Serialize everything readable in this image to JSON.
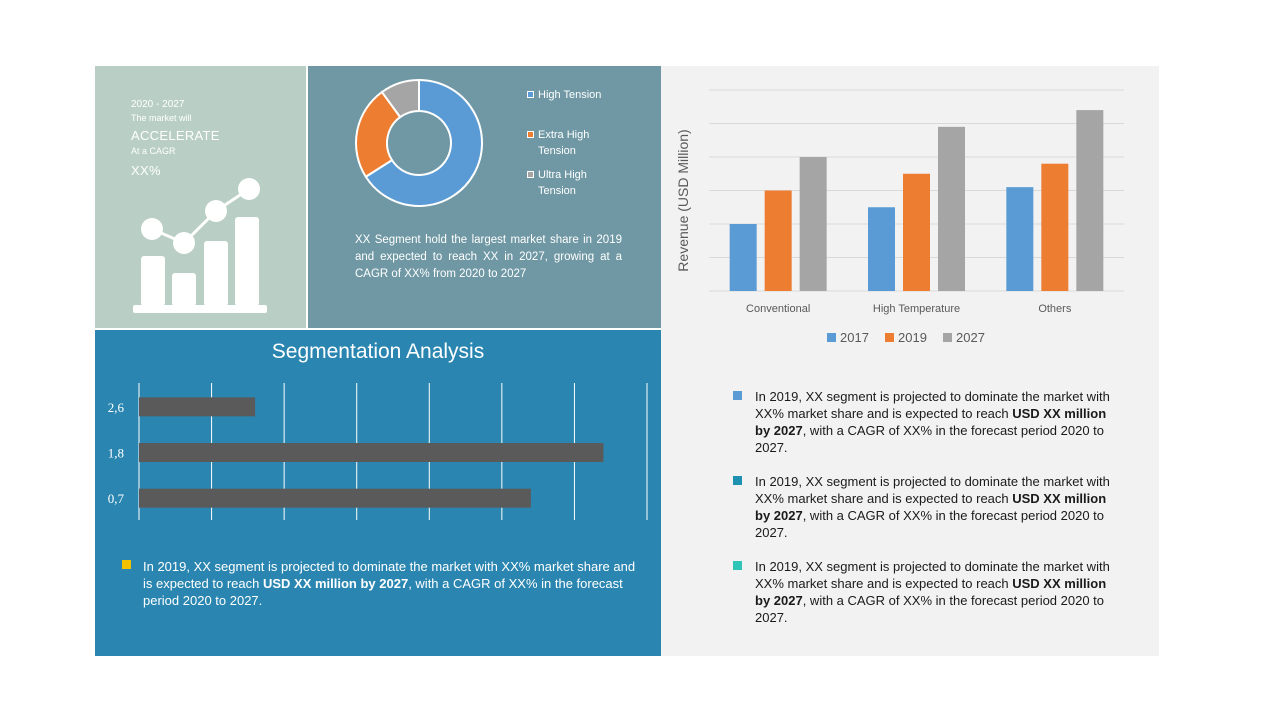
{
  "accelerate": {
    "years": "2020 - 2027",
    "line1": "The market will",
    "headline": "ACCELERATE",
    "line3": "At a CAGR",
    "cagr": "XX%"
  },
  "donut": {
    "legend": [
      "High Tension",
      "Extra High Tension",
      "Ultra High Tension"
    ],
    "colors": [
      "#5b9bd5",
      "#ed7d31",
      "#a5a5a5"
    ],
    "shares": [
      0.66,
      0.24,
      0.1
    ],
    "description": "XX Segment hold the largest market share in 2019 and expected to reach XX in 2027, growing at a CAGR of XX% from 2020 to 2027"
  },
  "chart_data": [
    {
      "type": "bar",
      "categories": [
        "Conventional",
        "High Temperature",
        "Others"
      ],
      "series": [
        {
          "name": "2017",
          "values": [
            2,
            2.5,
            3.1
          ],
          "color": "#5b9bd5"
        },
        {
          "name": "2019",
          "values": [
            3,
            3.5,
            3.8
          ],
          "color": "#ed7d31"
        },
        {
          "name": "2027",
          "values": [
            4,
            4.9,
            5.4
          ],
          "color": "#a5a5a5"
        }
      ],
      "ylabel": "Revenue (USD Million)",
      "ylim": [
        0,
        6
      ],
      "grid": true,
      "legend": "bottom"
    },
    {
      "type": "bar",
      "orientation": "horizontal",
      "title": "Segmentation Analysis",
      "categories": [
        "2,6",
        "1,8",
        "0,7"
      ],
      "values": [
        1.6,
        6.4,
        5.4
      ],
      "xlim": [
        0,
        7
      ],
      "grid": true,
      "bar_color": "#5a5a5a"
    }
  ],
  "segmentation": {
    "note_pre": "In 2019, XX segment is projected to dominate the  market with XX% market share and is expected to reach ",
    "note_bold": "USD XX million by 2027",
    "note_post": ", with a CAGR of XX% in the forecast period 2020 to 2027."
  },
  "bullets": [
    {
      "pre": "In 2019, XX segment is projected to dominate the  market with XX% market share and is expected to reach ",
      "bold": "USD XX million by 2027",
      "post": ", with a CAGR of XX% in the forecast period 2020 to 2027.",
      "color": "#5b9bd5"
    },
    {
      "pre": "In 2019, XX segment is projected to dominate the  market with XX% market share and is expected to reach ",
      "bold": "USD XX million by 2027",
      "post": ", with a CAGR of XX% in the forecast period 2020 to 2027.",
      "color": "#1e90b0"
    },
    {
      "pre": "In 2019, XX segment is projected to dominate the  market with XX% market share and is expected to reach ",
      "bold": "USD XX million by 2027",
      "post": ", with a CAGR of XX% in the forecast period 2020 to 2027.",
      "color": "#2ec4b6"
    }
  ]
}
